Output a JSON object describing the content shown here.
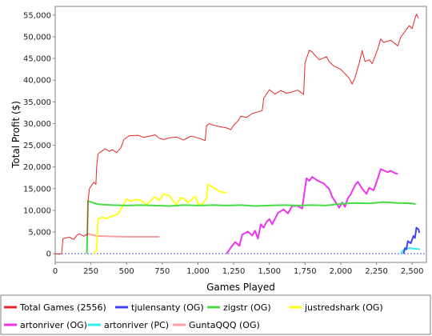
{
  "chart_data": {
    "type": "line",
    "title": "",
    "xlabel": "Games Played",
    "ylabel": "Total Profit ($)",
    "xlim": [
      0,
      2600
    ],
    "ylim": [
      -2000,
      57000
    ],
    "x_ticks": [
      0,
      250,
      500,
      750,
      1000,
      1250,
      1500,
      1750,
      2000,
      2250,
      2500
    ],
    "x_tick_labels": [
      "0",
      "250",
      "500",
      "750",
      "1,000",
      "1,250",
      "1,500",
      "1,750",
      "2,000",
      "2,250",
      "2,500"
    ],
    "y_ticks": [
      0,
      5000,
      10000,
      15000,
      20000,
      25000,
      30000,
      35000,
      40000,
      45000,
      50000,
      55000
    ],
    "y_tick_labels": [
      "0",
      "5,000",
      "10,000",
      "15,000",
      "20,000",
      "25,000",
      "30,000",
      "35,000",
      "40,000",
      "45,000",
      "50,000",
      "55,000"
    ],
    "grid": false,
    "legend_position": "bottom",
    "series": [
      {
        "name": "Total Games (2556)",
        "color": "#e8262a",
        "width": 1,
        "points": [
          [
            0,
            0
          ],
          [
            30,
            -100
          ],
          [
            45,
            0
          ],
          [
            55,
            3500
          ],
          [
            100,
            3800
          ],
          [
            130,
            3300
          ],
          [
            150,
            4200
          ],
          [
            170,
            4600
          ],
          [
            200,
            4000
          ],
          [
            215,
            4400
          ],
          [
            225,
            4200
          ],
          [
            230,
            12000
          ],
          [
            240,
            15000
          ],
          [
            270,
            16500
          ],
          [
            285,
            16000
          ],
          [
            290,
            20000
          ],
          [
            300,
            23000
          ],
          [
            350,
            24200
          ],
          [
            380,
            23600
          ],
          [
            400,
            24000
          ],
          [
            430,
            23300
          ],
          [
            460,
            24400
          ],
          [
            480,
            26300
          ],
          [
            520,
            27200
          ],
          [
            580,
            27300
          ],
          [
            620,
            26800
          ],
          [
            660,
            27100
          ],
          [
            700,
            27400
          ],
          [
            730,
            26600
          ],
          [
            760,
            26300
          ],
          [
            800,
            26700
          ],
          [
            850,
            26900
          ],
          [
            900,
            26200
          ],
          [
            950,
            27100
          ],
          [
            1000,
            26700
          ],
          [
            1050,
            26100
          ],
          [
            1060,
            29500
          ],
          [
            1080,
            30000
          ],
          [
            1100,
            29700
          ],
          [
            1150,
            29300
          ],
          [
            1200,
            29000
          ],
          [
            1230,
            28600
          ],
          [
            1250,
            29600
          ],
          [
            1280,
            30600
          ],
          [
            1300,
            31700
          ],
          [
            1340,
            31400
          ],
          [
            1380,
            32300
          ],
          [
            1420,
            32700
          ],
          [
            1450,
            33000
          ],
          [
            1460,
            35800
          ],
          [
            1500,
            37800
          ],
          [
            1540,
            36800
          ],
          [
            1580,
            37600
          ],
          [
            1620,
            37000
          ],
          [
            1650,
            37200
          ],
          [
            1700,
            37700
          ],
          [
            1740,
            36700
          ],
          [
            1750,
            44000
          ],
          [
            1760,
            45000
          ],
          [
            1780,
            46900
          ],
          [
            1800,
            46500
          ],
          [
            1820,
            45700
          ],
          [
            1850,
            44700
          ],
          [
            1900,
            45400
          ],
          [
            1920,
            44200
          ],
          [
            1950,
            43300
          ],
          [
            2000,
            42500
          ],
          [
            2030,
            41500
          ],
          [
            2060,
            40400
          ],
          [
            2080,
            39100
          ],
          [
            2100,
            40600
          ],
          [
            2130,
            44000
          ],
          [
            2150,
            46800
          ],
          [
            2170,
            44300
          ],
          [
            2200,
            44700
          ],
          [
            2220,
            43800
          ],
          [
            2260,
            47200
          ],
          [
            2280,
            49500
          ],
          [
            2300,
            48700
          ],
          [
            2350,
            49200
          ],
          [
            2400,
            47900
          ],
          [
            2420,
            49900
          ],
          [
            2450,
            51200
          ],
          [
            2480,
            52600
          ],
          [
            2500,
            51900
          ],
          [
            2520,
            54200
          ],
          [
            2530,
            55200
          ],
          [
            2545,
            54300
          ]
        ]
      },
      {
        "name": "tjulensanty (OG)",
        "color": "#4444ee",
        "width": 2,
        "points": [
          [
            2440,
            0
          ],
          [
            2450,
            1300
          ],
          [
            2460,
            1000
          ],
          [
            2470,
            2900
          ],
          [
            2490,
            2400
          ],
          [
            2500,
            3300
          ],
          [
            2510,
            4100
          ],
          [
            2520,
            3600
          ],
          [
            2530,
            6000
          ],
          [
            2545,
            5600
          ],
          [
            2550,
            4800
          ]
        ]
      },
      {
        "name": "zigstr (OG)",
        "color": "#44dd44",
        "width": 2,
        "points": [
          [
            222,
            0
          ],
          [
            230,
            12200
          ],
          [
            250,
            11900
          ],
          [
            300,
            11400
          ],
          [
            400,
            11200
          ],
          [
            500,
            11100
          ],
          [
            600,
            11200
          ],
          [
            700,
            11100
          ],
          [
            800,
            11000
          ],
          [
            900,
            11200
          ],
          [
            1000,
            11100
          ],
          [
            1100,
            11200
          ],
          [
            1200,
            11100
          ],
          [
            1300,
            11200
          ],
          [
            1400,
            11000
          ],
          [
            1500,
            11100
          ],
          [
            1600,
            11200
          ],
          [
            1700,
            11100
          ],
          [
            1800,
            11200
          ],
          [
            1900,
            11100
          ],
          [
            2000,
            11500
          ],
          [
            2100,
            11700
          ],
          [
            2200,
            11600
          ],
          [
            2300,
            11900
          ],
          [
            2400,
            11700
          ],
          [
            2500,
            11600
          ],
          [
            2525,
            11400
          ]
        ]
      },
      {
        "name": "justredshark (OG)",
        "color": "#ffff22",
        "width": 2,
        "points": [
          [
            270,
            0
          ],
          [
            290,
            800
          ],
          [
            300,
            8000
          ],
          [
            330,
            8400
          ],
          [
            360,
            8100
          ],
          [
            400,
            8700
          ],
          [
            440,
            9200
          ],
          [
            470,
            10800
          ],
          [
            500,
            12600
          ],
          [
            530,
            12100
          ],
          [
            560,
            12500
          ],
          [
            600,
            12300
          ],
          [
            640,
            11300
          ],
          [
            680,
            12600
          ],
          [
            700,
            13100
          ],
          [
            730,
            12300
          ],
          [
            760,
            13800
          ],
          [
            800,
            13300
          ],
          [
            830,
            12000
          ],
          [
            850,
            11400
          ],
          [
            880,
            12900
          ],
          [
            900,
            12700
          ],
          [
            930,
            11800
          ],
          [
            980,
            13200
          ],
          [
            1000,
            11500
          ],
          [
            1030,
            11300
          ],
          [
            1060,
            12900
          ],
          [
            1070,
            16000
          ],
          [
            1100,
            15400
          ],
          [
            1130,
            14800
          ],
          [
            1160,
            14200
          ],
          [
            1200,
            14100
          ]
        ]
      },
      {
        "name": "artonriver (OG)",
        "color": "#ee33ee",
        "width": 2,
        "points": [
          [
            1200,
            0
          ],
          [
            1230,
            1400
          ],
          [
            1260,
            2700
          ],
          [
            1290,
            1800
          ],
          [
            1310,
            4400
          ],
          [
            1350,
            5100
          ],
          [
            1380,
            4200
          ],
          [
            1400,
            5300
          ],
          [
            1420,
            3500
          ],
          [
            1440,
            6800
          ],
          [
            1460,
            6000
          ],
          [
            1480,
            7300
          ],
          [
            1500,
            8000
          ],
          [
            1520,
            6800
          ],
          [
            1560,
            9400
          ],
          [
            1600,
            10200
          ],
          [
            1630,
            9300
          ],
          [
            1660,
            11000
          ],
          [
            1700,
            11000
          ],
          [
            1730,
            10400
          ],
          [
            1760,
            17400
          ],
          [
            1780,
            16800
          ],
          [
            1800,
            17700
          ],
          [
            1840,
            16800
          ],
          [
            1880,
            16200
          ],
          [
            1920,
            14900
          ],
          [
            1940,
            13100
          ],
          [
            1960,
            12100
          ],
          [
            1990,
            10600
          ],
          [
            2010,
            11800
          ],
          [
            2030,
            10800
          ],
          [
            2050,
            12800
          ],
          [
            2070,
            13700
          ],
          [
            2100,
            15800
          ],
          [
            2120,
            16600
          ],
          [
            2150,
            15000
          ],
          [
            2180,
            13800
          ],
          [
            2200,
            15200
          ],
          [
            2230,
            14600
          ],
          [
            2260,
            17400
          ],
          [
            2280,
            19500
          ],
          [
            2300,
            19200
          ],
          [
            2330,
            18800
          ],
          [
            2350,
            19100
          ],
          [
            2380,
            18600
          ],
          [
            2400,
            18400
          ]
        ]
      },
      {
        "name": "artonriver (PC)",
        "color": "#33eeee",
        "width": 2,
        "points": [
          [
            2420,
            0
          ],
          [
            2440,
            900
          ],
          [
            2460,
            1200
          ],
          [
            2480,
            1300
          ],
          [
            2500,
            1200
          ],
          [
            2540,
            1100
          ],
          [
            2555,
            1000
          ]
        ]
      },
      {
        "name": "GuntaQQQ (OG)",
        "color": "#ff9f9f",
        "width": 2,
        "points": [
          [
            230,
            4600
          ],
          [
            260,
            4300
          ],
          [
            300,
            4100
          ],
          [
            400,
            4000
          ],
          [
            500,
            3900
          ],
          [
            600,
            3900
          ],
          [
            700,
            3900
          ],
          [
            730,
            3900
          ]
        ]
      }
    ],
    "zero_line_color": "#5555ff"
  }
}
